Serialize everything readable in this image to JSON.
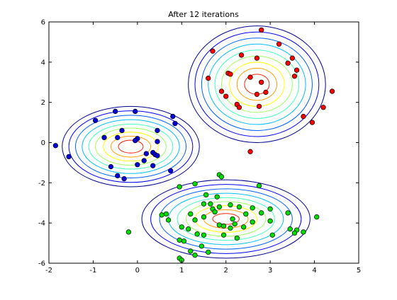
{
  "chart_data": {
    "type": "scatter",
    "title": "After 12 iterations",
    "xlabel": "",
    "ylabel": "",
    "xlim": [
      -2,
      5
    ],
    "ylim": [
      -6,
      6
    ],
    "xticks": [
      -2,
      -1,
      0,
      1,
      2,
      3,
      4,
      5
    ],
    "yticks": [
      -6,
      -4,
      -2,
      0,
      2,
      4,
      6
    ],
    "grid": false,
    "legend": "none",
    "contour_levels": 9,
    "contour_colors": [
      "#00008f",
      "#0000ff",
      "#0060ff",
      "#00bfff",
      "#40ffbf",
      "#9fff60",
      "#ffff00",
      "#ff9f00",
      "#ff2000"
    ],
    "components": [
      {
        "center": [
          2.7,
          2.9
        ],
        "radius_x": [
          1.55,
          1.4,
          1.25,
          1.1,
          0.95,
          0.8,
          0.62,
          0.45,
          0.28
        ],
        "radius_y": [
          2.9,
          2.6,
          2.3,
          2.0,
          1.7,
          1.4,
          1.1,
          0.8,
          0.5
        ]
      },
      {
        "center": [
          -0.15,
          -0.2
        ],
        "radius_x": [
          1.55,
          1.4,
          1.25,
          1.1,
          0.95,
          0.8,
          0.62,
          0.45,
          0.28
        ],
        "radius_y": [
          2.0,
          1.78,
          1.56,
          1.34,
          1.12,
          0.92,
          0.72,
          0.52,
          0.32
        ]
      },
      {
        "center": [
          2.0,
          -3.8
        ],
        "radius_x": [
          1.9,
          1.7,
          1.5,
          1.3,
          1.1,
          0.9,
          0.7,
          0.5,
          0.3
        ],
        "radius_y": [
          1.95,
          1.72,
          1.5,
          1.28,
          1.06,
          0.86,
          0.66,
          0.46,
          0.27
        ]
      }
    ],
    "series": [
      {
        "color": "#ff0000",
        "points": [
          [
            2.8,
            5.6
          ],
          [
            2.35,
            4.35
          ],
          [
            3.2,
            4.9
          ],
          [
            1.7,
            4.55
          ],
          [
            2.7,
            4.2
          ],
          [
            3.5,
            4.2
          ],
          [
            3.4,
            3.95
          ],
          [
            3.6,
            3.6
          ],
          [
            2.05,
            3.45
          ],
          [
            2.1,
            3.4
          ],
          [
            2.55,
            3.25
          ],
          [
            3.55,
            3.3
          ],
          [
            1.6,
            3.2
          ],
          [
            2.8,
            3.0
          ],
          [
            2.7,
            2.4
          ],
          [
            2.9,
            2.5
          ],
          [
            1.9,
            2.55
          ],
          [
            2.0,
            2.3
          ],
          [
            2.25,
            1.9
          ],
          [
            2.3,
            1.75
          ],
          [
            2.75,
            1.8
          ],
          [
            4.4,
            2.55
          ],
          [
            4.2,
            1.75
          ],
          [
            3.75,
            1.3
          ],
          [
            3.95,
            1.0
          ],
          [
            2.55,
            -0.45
          ]
        ]
      },
      {
        "color": "#0000dd",
        "points": [
          [
            -0.5,
            1.55
          ],
          [
            -0.05,
            1.55
          ],
          [
            -0.95,
            1.1
          ],
          [
            0.8,
            1.3
          ],
          [
            0.85,
            0.95
          ],
          [
            -0.35,
            0.6
          ],
          [
            0.45,
            0.6
          ],
          [
            -0.75,
            0.25
          ],
          [
            -0.45,
            0.25
          ],
          [
            0.0,
            0.2
          ],
          [
            -0.05,
            0.1
          ],
          [
            0.45,
            0.05
          ],
          [
            -1.85,
            -0.15
          ],
          [
            0.2,
            -0.55
          ],
          [
            0.35,
            -0.5
          ],
          [
            0.4,
            -0.6
          ],
          [
            0.45,
            -0.65
          ],
          [
            -1.55,
            -0.7
          ],
          [
            0.15,
            -0.9
          ],
          [
            0.0,
            -1.1
          ],
          [
            0.35,
            -1.15
          ],
          [
            -0.6,
            -1.2
          ],
          [
            0.75,
            -1.4
          ],
          [
            -0.45,
            -1.65
          ],
          [
            -0.3,
            -1.8
          ]
        ]
      },
      {
        "color": "#00dd00",
        "points": [
          [
            1.85,
            -1.6
          ],
          [
            1.9,
            -1.7
          ],
          [
            0.95,
            -2.2
          ],
          [
            1.3,
            -2.05
          ],
          [
            2.75,
            -2.15
          ],
          [
            1.8,
            -2.7
          ],
          [
            1.55,
            -2.6
          ],
          [
            1.5,
            -3.05
          ],
          [
            1.65,
            -3.05
          ],
          [
            2.1,
            -3.1
          ],
          [
            1.85,
            -3.2
          ],
          [
            1.7,
            -3.3
          ],
          [
            2.3,
            -3.2
          ],
          [
            2.6,
            -3.25
          ],
          [
            3.0,
            -3.3
          ],
          [
            1.75,
            -3.45
          ],
          [
            2.45,
            -3.55
          ],
          [
            2.8,
            -3.5
          ],
          [
            3.4,
            -3.5
          ],
          [
            1.2,
            -3.55
          ],
          [
            0.55,
            -3.6
          ],
          [
            0.65,
            -3.55
          ],
          [
            1.5,
            -3.7
          ],
          [
            2.15,
            -3.8
          ],
          [
            1.3,
            -3.85
          ],
          [
            0.7,
            -3.85
          ],
          [
            3.0,
            -3.9
          ],
          [
            4.05,
            -3.7
          ],
          [
            2.6,
            -3.95
          ],
          [
            1.85,
            -4.1
          ],
          [
            1.95,
            -4.15
          ],
          [
            2.2,
            -4.05
          ],
          [
            1.0,
            -4.2
          ],
          [
            1.15,
            -4.3
          ],
          [
            2.1,
            -4.25
          ],
          [
            2.4,
            -4.2
          ],
          [
            3.45,
            -4.3
          ],
          [
            3.6,
            -4.35
          ],
          [
            3.75,
            -4.45
          ],
          [
            3.55,
            -4.5
          ],
          [
            3.05,
            -4.6
          ],
          [
            -0.2,
            -4.45
          ],
          [
            1.35,
            -4.55
          ],
          [
            1.5,
            -4.6
          ],
          [
            1.95,
            -4.6
          ],
          [
            2.25,
            -4.75
          ],
          [
            0.95,
            -4.85
          ],
          [
            1.05,
            -4.9
          ],
          [
            1.45,
            -5.15
          ],
          [
            1.2,
            -5.4
          ],
          [
            1.6,
            -5.45
          ],
          [
            1.3,
            -5.6
          ],
          [
            0.95,
            -5.75
          ],
          [
            1.0,
            -5.85
          ]
        ]
      }
    ]
  }
}
